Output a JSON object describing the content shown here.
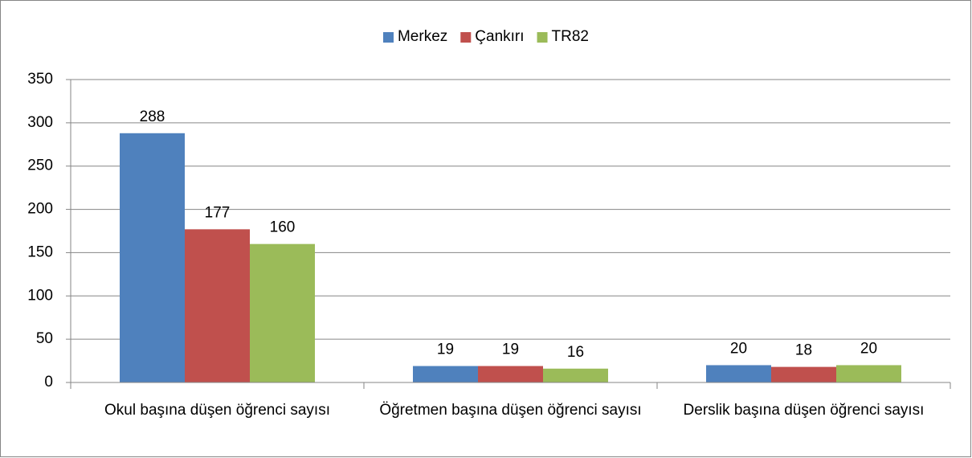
{
  "chart_data": {
    "type": "bar",
    "categories": [
      "Okul başına düşen öğrenci sayısı",
      "Öğretmen başına düşen öğrenci sayısı",
      "Derslik başına düşen öğrenci sayısı"
    ],
    "series": [
      {
        "name": "Merkez",
        "color": "#4f81bd",
        "values": [
          288,
          19,
          20
        ]
      },
      {
        "name": "Çankırı",
        "color": "#c0504d",
        "values": [
          177,
          19,
          18
        ]
      },
      {
        "name": "TR82",
        "color": "#9bbb59",
        "values": [
          160,
          16,
          20
        ]
      }
    ],
    "ylim": [
      0,
      350
    ],
    "yticks": [
      0,
      50,
      100,
      150,
      200,
      250,
      300,
      350
    ],
    "grid": true,
    "legend": "top"
  }
}
